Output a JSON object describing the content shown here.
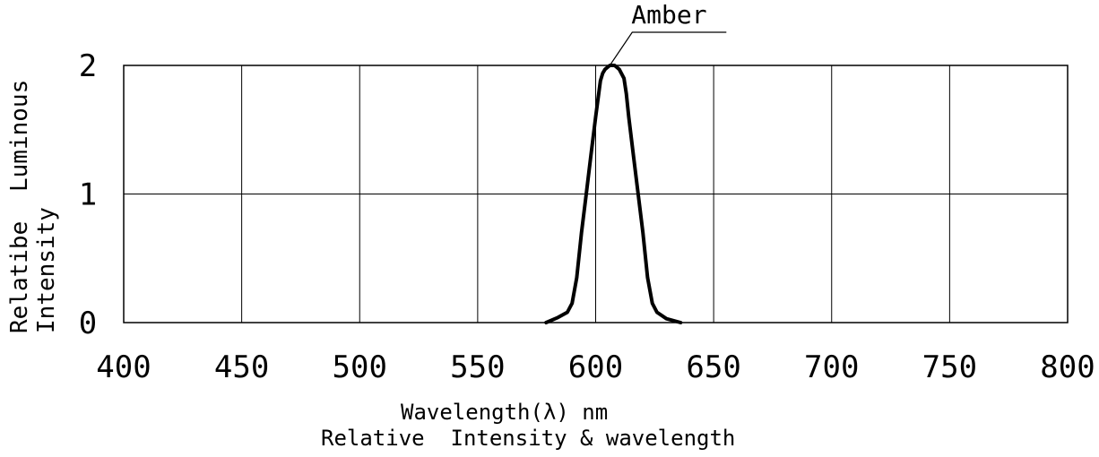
{
  "chart_data": {
    "type": "line",
    "title": "Relative  Intensity & wavelength",
    "xlabel": "Wavelength(λ) nm",
    "ylabel_line1": "Luminous",
    "ylabel_line2": "Relatibe",
    "ylabel_line3": "Intensity",
    "xlim": [
      400,
      800
    ],
    "ylim": [
      0,
      2
    ],
    "grid": true,
    "x_ticks": [
      "400",
      "450",
      "500",
      "550",
      "600",
      "650",
      "700",
      "750",
      "800"
    ],
    "y_ticks": [
      "0",
      "1",
      "2"
    ],
    "series": [
      {
        "name": "Amber",
        "color": "#000000",
        "x": [
          579,
          584,
          588,
          590,
          592,
          594,
          596,
          598,
          600,
          602,
          603,
          604,
          606,
          608,
          610,
          612,
          613,
          614,
          616,
          618,
          620,
          622,
          624,
          626,
          630,
          636
        ],
        "y": [
          0.0,
          0.04,
          0.08,
          0.15,
          0.35,
          0.7,
          1.0,
          1.3,
          1.6,
          1.88,
          1.94,
          1.97,
          2.0,
          2.0,
          1.97,
          1.9,
          1.78,
          1.6,
          1.3,
          1.0,
          0.7,
          0.35,
          0.15,
          0.08,
          0.03,
          0.0
        ]
      }
    ]
  }
}
